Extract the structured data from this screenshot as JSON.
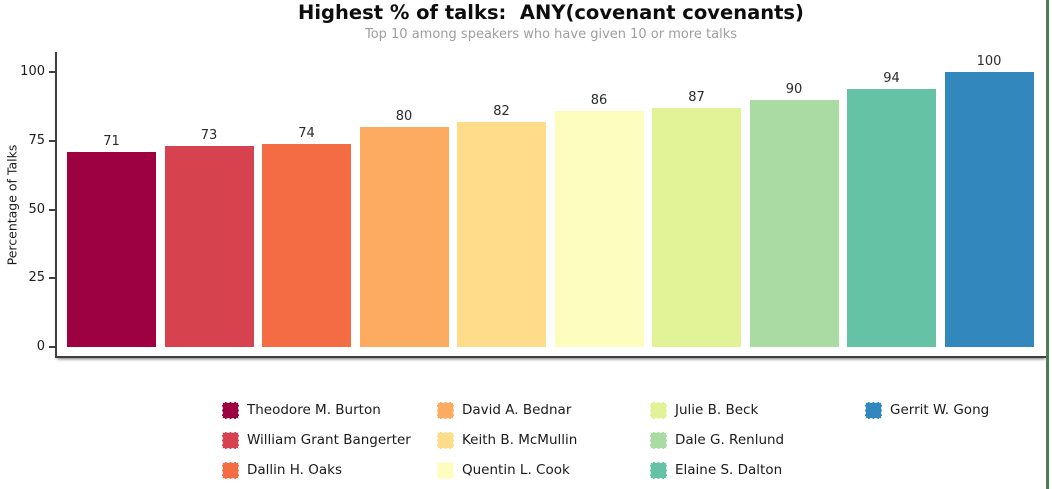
{
  "figure": {
    "title": "Highest % of talks:  ANY(covenant covenants)",
    "subtitle": "Top 10 among speakers who have given 10 or more talks"
  },
  "chart_data": {
    "type": "bar",
    "title": "Highest % of talks:  ANY(covenant covenants)",
    "subtitle": "Top 10 among speakers who have given 10 or more talks",
    "xlabel": "",
    "ylabel": "Percentage of Talks",
    "ylim": [
      0,
      104
    ],
    "yticks": [
      0,
      25,
      50,
      75,
      100
    ],
    "grid": false,
    "legend_position": "bottom",
    "legend_columns": 4,
    "categories": [
      "Theodore M. Burton",
      "William Grant Bangerter",
      "Dallin H. Oaks",
      "David A. Bednar",
      "Keith B. McMullin",
      "Quentin L. Cook",
      "Julie B. Beck",
      "Dale G. Renlund",
      "Elaine S. Dalton",
      "Gerrit W. Gong"
    ],
    "values": [
      71,
      73,
      74,
      80,
      82,
      86,
      87,
      90,
      94,
      100
    ],
    "bar_colors": [
      "#9e0142",
      "#d6424e",
      "#f36c43",
      "#fcab60",
      "#fedc8a",
      "#fdfebe",
      "#e2f397",
      "#aadba3",
      "#66c2a5",
      "#3288bd"
    ]
  },
  "colors": {
    "spine": "#3f3f3f",
    "subtitle_text": "#9e9e9e",
    "right_edge_line": "#4d7c50"
  }
}
